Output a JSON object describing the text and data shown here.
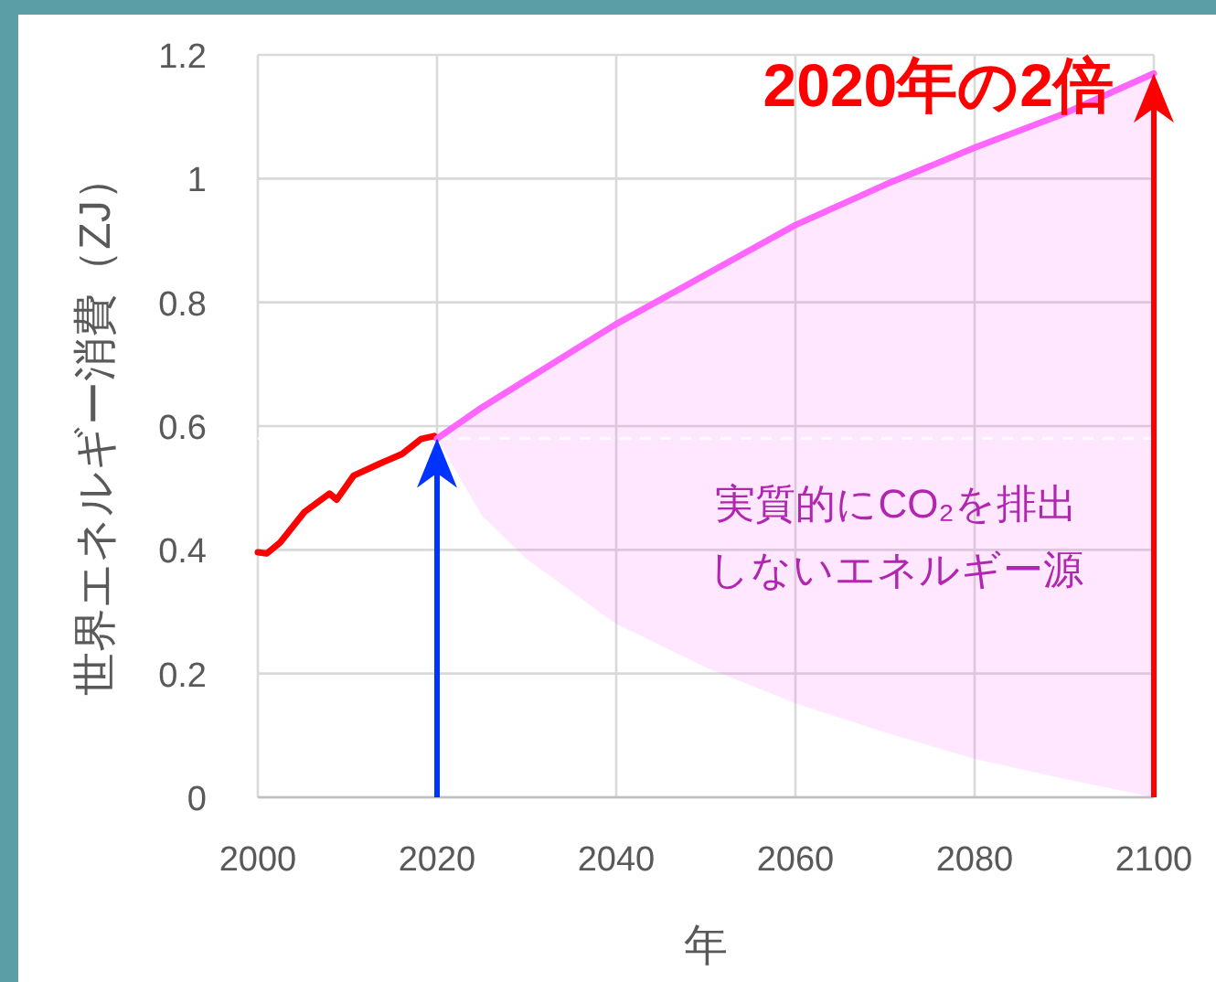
{
  "chart_data": {
    "type": "line",
    "xlabel": "年",
    "ylabel": "世界エネルギー消費（ZJ）",
    "xlim": [
      2000,
      2100
    ],
    "xticks": [
      2000,
      2020,
      2040,
      2060,
      2080,
      2100
    ],
    "ylim": [
      0,
      1.2
    ],
    "yticks": [
      0,
      {
        "value": 0.2,
        "label": "0.2"
      },
      {
        "value": 0.4,
        "label": "0.4"
      },
      {
        "value": 0.6,
        "label": "0.6"
      },
      {
        "value": 0.8,
        "label": "0.8"
      },
      1,
      {
        "value": 1.2,
        "label": "1.2"
      }
    ],
    "grid": true,
    "series": [
      {
        "color": "#ff0000",
        "x": [
          2000,
          2001,
          2002.5,
          2005.2,
          2008,
          2008.8,
          2010.7,
          2013.4,
          2016.1,
          2018.2,
          2019.7,
          2020
        ],
        "values": [
          0.396,
          0.394,
          0.412,
          0.461,
          0.491,
          0.481,
          0.52,
          0.538,
          0.555,
          0.579,
          0.584,
          0.58
        ]
      },
      {
        "color": "#ff66ff",
        "x": [
          2020,
          2025,
          2030,
          2040,
          2050,
          2060,
          2070,
          2080,
          2090,
          2100
        ],
        "values": [
          0.58,
          0.63,
          0.675,
          0.765,
          0.845,
          0.925,
          0.99,
          1.05,
          1.105,
          1.17
        ],
        "upper": [
          0.58,
          0.63,
          0.675,
          0.765,
          0.845,
          0.925,
          0.99,
          1.05,
          1.105,
          1.17
        ],
        "lower": [
          0.58,
          0.455,
          0.385,
          0.28,
          0.21,
          0.152,
          0.105,
          0.062,
          0.03,
          0
        ]
      }
    ],
    "annotations": [
      "実質的にCO₂を排出しないエネルギー源"
    ],
    "ref_lines": [
      {
        "axis": "y",
        "value": 0.58,
        "color": "#ffffff",
        "line_style": "dashed"
      },
      {
        "axis": "x",
        "value": 2020,
        "color": "#0033ff"
      },
      {
        "axis": "x",
        "value": 2100,
        "color": "#ff0000",
        "label": "2020年の2倍"
      }
    ]
  }
}
